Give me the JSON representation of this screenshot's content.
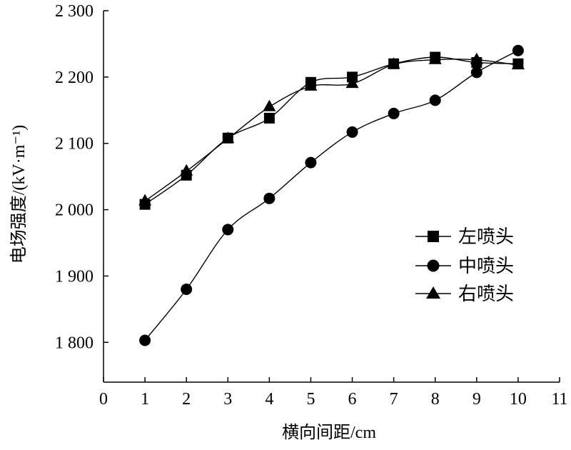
{
  "chart_data": {
    "type": "line",
    "title": "",
    "xlabel": "横向间距/cm",
    "ylabel": "电场强度/(kV·m⁻¹)",
    "xlim": [
      0,
      11
    ],
    "ylim": [
      1740,
      2300
    ],
    "xticks": [
      0,
      1,
      2,
      3,
      4,
      5,
      6,
      7,
      8,
      9,
      10,
      11
    ],
    "xtick_labels": [
      "0",
      "1",
      "2",
      "3",
      "4",
      "5",
      "6",
      "7",
      "8",
      "9",
      "10",
      "11"
    ],
    "yticks": [
      1800,
      1900,
      2000,
      2100,
      2200,
      2300
    ],
    "ytick_labels": [
      "1 800",
      "1 900",
      "2 000",
      "2 100",
      "2 200",
      "2 300"
    ],
    "grid": false,
    "legend_position": "right",
    "x": [
      1,
      2,
      3,
      4,
      5,
      6,
      7,
      8,
      9,
      10
    ],
    "series": [
      {
        "name": "左喷头",
        "marker": "square",
        "values": [
          2008,
          2052,
          2108,
          2138,
          2192,
          2200,
          2220,
          2230,
          2222,
          2220
        ]
      },
      {
        "name": "中喷头",
        "marker": "circle",
        "values": [
          1803,
          1880,
          1970,
          2017,
          2071,
          2117,
          2145,
          2165,
          2207,
          2240
        ]
      },
      {
        "name": "右喷头",
        "marker": "triangle",
        "values": [
          2013,
          2058,
          2107,
          2155,
          2186,
          2190,
          2219,
          2226,
          2226,
          2218
        ]
      }
    ]
  }
}
